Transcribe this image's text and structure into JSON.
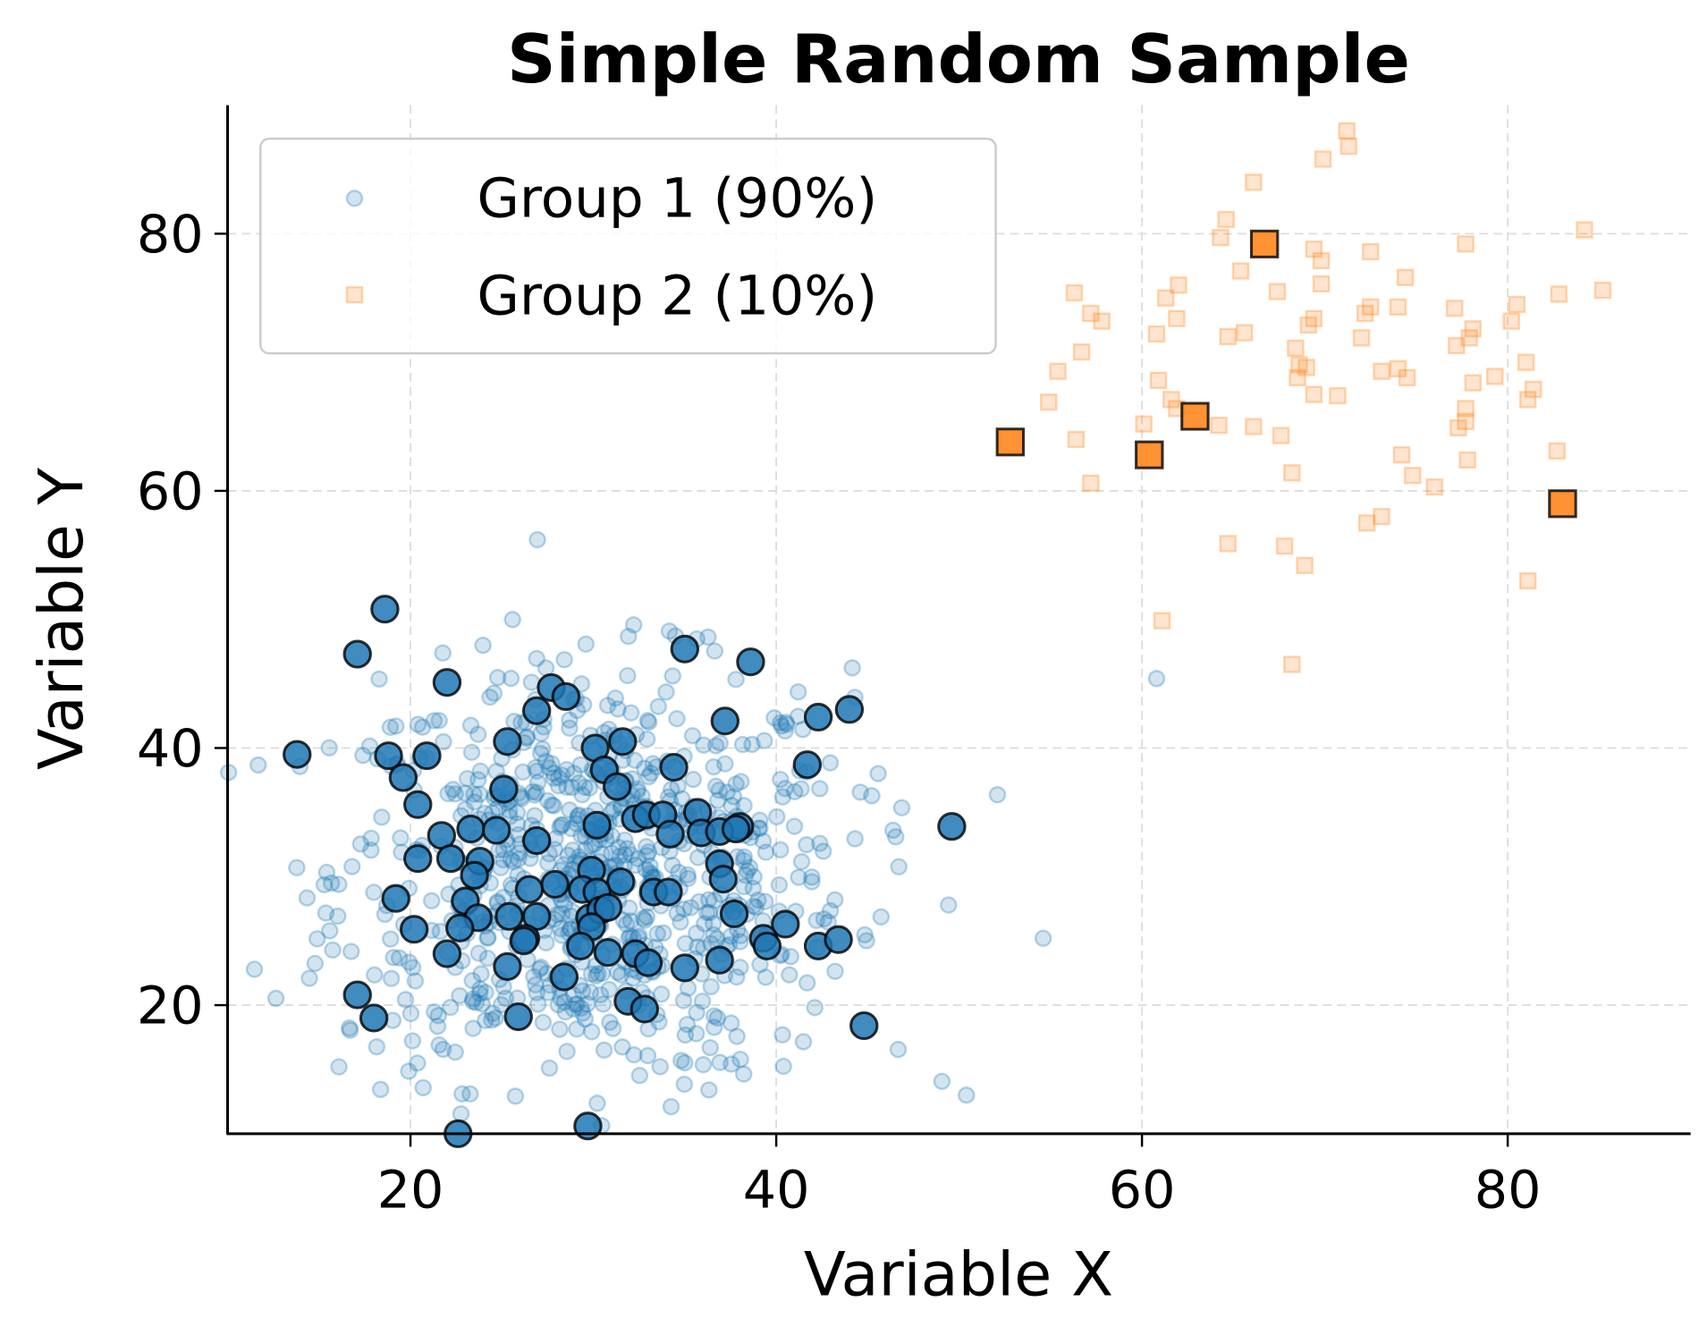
{
  "chart_data": {
    "type": "scatter",
    "title": "Simple Random Sample",
    "xlabel": "Variable X",
    "ylabel": "Variable Y",
    "xlim": [
      10,
      90
    ],
    "ylim": [
      10,
      90
    ],
    "xticks": [
      "20",
      "40",
      "60",
      "80"
    ],
    "yticks": [
      "20",
      "40",
      "60",
      "80"
    ],
    "grid": true,
    "grid_style": "dashed",
    "legend_placement": "top-left",
    "colors": {
      "group1": "#1f77b4",
      "group2": "#ff7f0e",
      "edge": "#000000"
    },
    "series": [
      {
        "name": "Group 1 (90%)",
        "marker": "circle",
        "population_alpha": 0.2,
        "population_extra": [
          [
            60.8,
            45.4
          ],
          [
            54.6,
            25.2
          ],
          [
            50.4,
            13.0
          ]
        ],
        "sampled": [
          [
            18.6,
            50.8
          ],
          [
            17.1,
            47.3
          ],
          [
            35.0,
            47.7
          ],
          [
            38.6,
            46.7
          ],
          [
            27.7,
            44.7
          ],
          [
            22.0,
            45.1
          ],
          [
            28.5,
            44.0
          ],
          [
            26.9,
            42.9
          ],
          [
            37.2,
            42.1
          ],
          [
            42.3,
            42.4
          ],
          [
            44.0,
            43.0
          ],
          [
            13.8,
            39.5
          ],
          [
            18.8,
            39.4
          ],
          [
            20.9,
            39.4
          ],
          [
            25.3,
            40.5
          ],
          [
            30.1,
            40.0
          ],
          [
            31.6,
            40.5
          ],
          [
            19.6,
            37.7
          ],
          [
            30.6,
            38.3
          ],
          [
            25.1,
            36.8
          ],
          [
            34.4,
            38.5
          ],
          [
            41.7,
            38.7
          ],
          [
            20.4,
            35.6
          ],
          [
            31.3,
            37.0
          ],
          [
            21.7,
            33.2
          ],
          [
            23.3,
            33.7
          ],
          [
            24.7,
            33.6
          ],
          [
            26.9,
            32.8
          ],
          [
            30.2,
            34.0
          ],
          [
            32.3,
            34.5
          ],
          [
            32.9,
            34.8
          ],
          [
            33.8,
            34.8
          ],
          [
            35.7,
            35.0
          ],
          [
            38.0,
            33.9
          ],
          [
            34.2,
            33.3
          ],
          [
            35.9,
            33.4
          ],
          [
            36.9,
            33.5
          ],
          [
            37.8,
            33.7
          ],
          [
            49.6,
            33.9
          ],
          [
            20.4,
            31.4
          ],
          [
            22.2,
            31.4
          ],
          [
            23.8,
            31.2
          ],
          [
            23.5,
            30.1
          ],
          [
            29.9,
            30.5
          ],
          [
            31.5,
            29.6
          ],
          [
            36.9,
            31.0
          ],
          [
            37.1,
            29.8
          ],
          [
            19.2,
            28.3
          ],
          [
            23.0,
            28.1
          ],
          [
            26.5,
            29.0
          ],
          [
            27.9,
            29.4
          ],
          [
            29.4,
            29.0
          ],
          [
            30.2,
            28.8
          ],
          [
            33.3,
            28.8
          ],
          [
            34.1,
            28.8
          ],
          [
            23.7,
            26.8
          ],
          [
            22.7,
            26.0
          ],
          [
            25.4,
            26.9
          ],
          [
            26.9,
            26.9
          ],
          [
            26.3,
            25.2
          ],
          [
            29.8,
            26.8
          ],
          [
            30.4,
            27.4
          ],
          [
            30.8,
            27.6
          ],
          [
            37.7,
            27.1
          ],
          [
            20.2,
            25.9
          ],
          [
            29.9,
            26.1
          ],
          [
            26.2,
            25.0
          ],
          [
            40.5,
            26.3
          ],
          [
            39.3,
            25.2
          ],
          [
            39.5,
            24.6
          ],
          [
            29.3,
            24.6
          ],
          [
            30.8,
            24.1
          ],
          [
            32.3,
            24.0
          ],
          [
            33.0,
            23.3
          ],
          [
            35.0,
            22.9
          ],
          [
            36.9,
            23.5
          ],
          [
            42.3,
            24.6
          ],
          [
            43.4,
            25.1
          ],
          [
            22.0,
            24.0
          ],
          [
            25.3,
            23.0
          ],
          [
            28.4,
            22.2
          ],
          [
            17.1,
            20.8
          ],
          [
            31.9,
            20.3
          ],
          [
            32.8,
            19.7
          ],
          [
            18.0,
            19.0
          ],
          [
            25.9,
            19.1
          ],
          [
            44.8,
            18.4
          ],
          [
            22.6,
            10.0
          ],
          [
            29.7,
            10.6
          ]
        ]
      },
      {
        "name": "Group 2 (10%)",
        "marker": "square",
        "population_alpha": 0.2,
        "population": [
          [
            71.2,
            88.0
          ],
          [
            69.9,
            85.8
          ],
          [
            71.3,
            86.8
          ],
          [
            66.1,
            84.0
          ],
          [
            84.2,
            80.3
          ],
          [
            64.6,
            81.1
          ],
          [
            64.3,
            79.7
          ],
          [
            69.4,
            78.8
          ],
          [
            77.7,
            79.2
          ],
          [
            72.5,
            78.6
          ],
          [
            69.8,
            77.9
          ],
          [
            74.4,
            76.6
          ],
          [
            65.4,
            77.1
          ],
          [
            62.0,
            76.0
          ],
          [
            85.2,
            75.6
          ],
          [
            56.3,
            75.4
          ],
          [
            67.4,
            75.5
          ],
          [
            61.3,
            75.0
          ],
          [
            82.8,
            75.3
          ],
          [
            69.8,
            76.1
          ],
          [
            80.5,
            74.5
          ],
          [
            72.5,
            74.3
          ],
          [
            74.0,
            74.3
          ],
          [
            77.1,
            74.2
          ],
          [
            57.2,
            73.8
          ],
          [
            57.8,
            73.2
          ],
          [
            61.9,
            73.4
          ],
          [
            69.4,
            73.4
          ],
          [
            72.2,
            73.8
          ],
          [
            80.2,
            73.2
          ],
          [
            69.1,
            72.9
          ],
          [
            78.1,
            72.6
          ],
          [
            60.8,
            72.2
          ],
          [
            64.7,
            72.0
          ],
          [
            65.6,
            72.3
          ],
          [
            72.0,
            71.9
          ],
          [
            77.9,
            71.9
          ],
          [
            77.2,
            71.3
          ],
          [
            81.0,
            70.0
          ],
          [
            56.7,
            70.8
          ],
          [
            68.4,
            71.1
          ],
          [
            68.6,
            69.8
          ],
          [
            69.0,
            69.6
          ],
          [
            74.0,
            69.5
          ],
          [
            73.1,
            69.3
          ],
          [
            79.3,
            68.9
          ],
          [
            74.5,
            68.8
          ],
          [
            60.9,
            68.6
          ],
          [
            68.5,
            68.8
          ],
          [
            78.1,
            68.4
          ],
          [
            55.4,
            69.3
          ],
          [
            81.4,
            67.9
          ],
          [
            69.4,
            67.5
          ],
          [
            70.7,
            67.4
          ],
          [
            81.1,
            67.1
          ],
          [
            61.6,
            67.1
          ],
          [
            54.9,
            66.9
          ],
          [
            77.7,
            66.4
          ],
          [
            61.9,
            66.4
          ],
          [
            77.7,
            65.4
          ],
          [
            66.1,
            65.0
          ],
          [
            64.2,
            65.1
          ],
          [
            60.1,
            65.2
          ],
          [
            67.6,
            64.3
          ],
          [
            56.4,
            64.0
          ],
          [
            77.3,
            64.9
          ],
          [
            82.7,
            63.1
          ],
          [
            74.2,
            62.8
          ],
          [
            77.8,
            62.4
          ],
          [
            68.2,
            61.4
          ],
          [
            74.8,
            61.2
          ],
          [
            57.2,
            60.6
          ],
          [
            76.0,
            60.3
          ],
          [
            73.1,
            58.0
          ],
          [
            72.3,
            57.5
          ],
          [
            64.7,
            55.9
          ],
          [
            67.8,
            55.7
          ],
          [
            68.9,
            54.2
          ],
          [
            81.1,
            53.0
          ],
          [
            61.1,
            49.9
          ],
          [
            68.2,
            46.5
          ]
        ],
        "sampled": [
          [
            52.8,
            63.8
          ],
          [
            60.4,
            62.8
          ],
          [
            62.9,
            65.8
          ],
          [
            66.7,
            79.2
          ],
          [
            83.0,
            59.0
          ]
        ]
      }
    ]
  }
}
